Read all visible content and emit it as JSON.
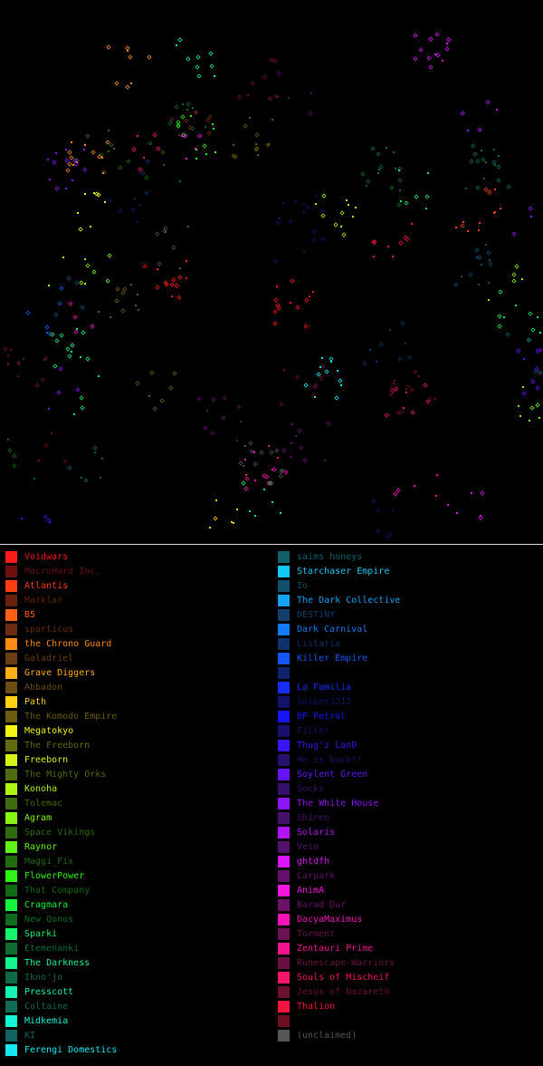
{
  "legend": {
    "left": [
      {
        "name": "Voidwars",
        "color": "#ff1a1a"
      },
      {
        "name": "MacroHard Inc.",
        "color": "#6b0f0f"
      },
      {
        "name": "Atlantis",
        "color": "#ff3d10"
      },
      {
        "name": "Marklar",
        "color": "#6b1f0f"
      },
      {
        "name": "B5",
        "color": "#ff6010"
      },
      {
        "name": "sparticus",
        "color": "#6b2d0f"
      },
      {
        "name": "the Chrono Guard",
        "color": "#ff8a14"
      },
      {
        "name": "Galadriel",
        "color": "#6b3d12"
      },
      {
        "name": "Grave Diggers",
        "color": "#ffae14"
      },
      {
        "name": "Abbadon",
        "color": "#6b4c12"
      },
      {
        "name": "Path",
        "color": "#ffd214"
      },
      {
        "name": "The Komodo Empire",
        "color": "#6b5a10"
      },
      {
        "name": "Megatokyo",
        "color": "#f5f514"
      },
      {
        "name": "The Freeborn",
        "color": "#636b10"
      },
      {
        "name": "Freeborn",
        "color": "#d6f514"
      },
      {
        "name": "The Mighty Orks",
        "color": "#4f6b10"
      },
      {
        "name": "Konoha",
        "color": "#aef514"
      },
      {
        "name": "Tolemac",
        "color": "#3f6b10"
      },
      {
        "name": "Agram",
        "color": "#86f514"
      },
      {
        "name": "Space Vikings",
        "color": "#306b10"
      },
      {
        "name": "Raynor",
        "color": "#5ef514"
      },
      {
        "name": "Maggi_Fix",
        "color": "#226b10"
      },
      {
        "name": "FlowerPower",
        "color": "#2cf514"
      },
      {
        "name": "That Company",
        "color": "#116b12"
      },
      {
        "name": "Cragmara",
        "color": "#14f540"
      },
      {
        "name": "New Qonos",
        "color": "#106b22"
      },
      {
        "name": "Sparki",
        "color": "#14f56a"
      },
      {
        "name": "Etemenanki",
        "color": "#106b33"
      },
      {
        "name": "The Darkness",
        "color": "#14f58e"
      },
      {
        "name": "Ikno'jo",
        "color": "#106b44"
      },
      {
        "name": "Presscott",
        "color": "#14f5b4"
      },
      {
        "name": "Coltaine",
        "color": "#106b54"
      },
      {
        "name": "Midkemia",
        "color": "#14f5d8"
      },
      {
        "name": "KI",
        "color": "#10635f"
      },
      {
        "name": "Ferengi Domestics",
        "color": "#14eaf5"
      }
    ],
    "right": [
      {
        "name": "saims honeys",
        "color": "#10606b"
      },
      {
        "name": "Starchaser Empire",
        "color": "#14c8f5"
      },
      {
        "name": "Io",
        "color": "#10506b"
      },
      {
        "name": "The Dark Collective",
        "color": "#14a2f5"
      },
      {
        "name": "DESTiNY",
        "color": "#10406b"
      },
      {
        "name": "Dark Carnival",
        "color": "#147af5"
      },
      {
        "name": "Listaria",
        "color": "#10306b"
      },
      {
        "name": "Killer Empire",
        "color": "#1456f5"
      },
      {
        "name": "",
        "color": "#10226b"
      },
      {
        "name": "La Familia",
        "color": "#142ef5"
      },
      {
        "name": "Sniper3212",
        "color": "#10146b"
      },
      {
        "name": "BP Petrol",
        "color": "#1414f5"
      },
      {
        "name": "Filter",
        "color": "#18106b"
      },
      {
        "name": "Thug'z LanD",
        "color": "#3c14f5"
      },
      {
        "name": "He is back!!",
        "color": "#26106b"
      },
      {
        "name": "Soylent Green",
        "color": "#6414f5"
      },
      {
        "name": "Socks",
        "color": "#34106b"
      },
      {
        "name": "The White House",
        "color": "#8c14f5"
      },
      {
        "name": "Shireo",
        "color": "#44106b"
      },
      {
        "name": "Solaris",
        "color": "#b414f5"
      },
      {
        "name": "Vein",
        "color": "#52106b"
      },
      {
        "name": "ghtdfh",
        "color": "#dc14f5"
      },
      {
        "name": "Carpark",
        "color": "#62106b"
      },
      {
        "name": "AnimA",
        "color": "#f514e0"
      },
      {
        "name": "Barad Dur",
        "color": "#6b1064"
      },
      {
        "name": "DacyaMaximus",
        "color": "#f514b8"
      },
      {
        "name": "Torment",
        "color": "#6b1052"
      },
      {
        "name": "Zentauri Prime",
        "color": "#f51490"
      },
      {
        "name": "Runescape-Warriors",
        "color": "#6b1042"
      },
      {
        "name": "Souls of Mischeif",
        "color": "#f51468"
      },
      {
        "name": "Jesus of Nazareth",
        "color": "#6b1032"
      },
      {
        "name": "Thalion",
        "color": "#f51440"
      },
      {
        "name": "",
        "color": "#6b1020"
      },
      {
        "name": "(unclaimed)",
        "color": "#555555"
      }
    ]
  }
}
